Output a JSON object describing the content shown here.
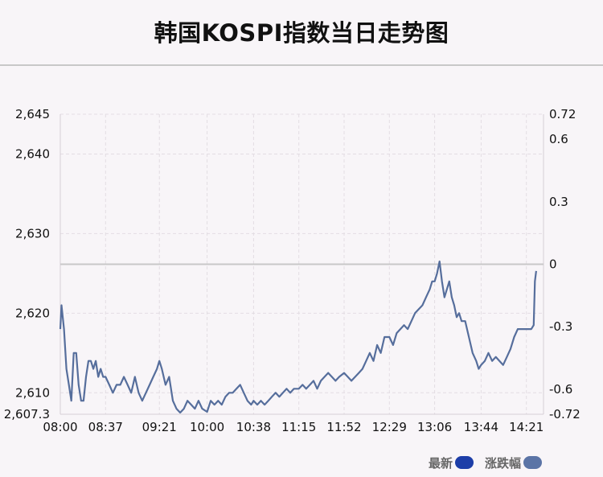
{
  "chart_data": {
    "type": "line",
    "title": "韩国KOSPI指数当日走势图",
    "legend": [
      {
        "name": "最新",
        "color": "#1d3ea8"
      },
      {
        "name": "涨跌幅",
        "color": "#5b74a6"
      }
    ],
    "legend_position": "bottom-right",
    "grid": true,
    "line_color": "#566e9c",
    "zero_line_color": "#c8c8c8",
    "y_left": {
      "min": 2607.3,
      "max": 2645,
      "ticks": [
        2645,
        2640,
        2630,
        2620,
        2610,
        2607.3
      ],
      "tick_labels": [
        "2,645",
        "2,640",
        "2,630",
        "2,620",
        "2,610",
        "2,607.3"
      ]
    },
    "y_right": {
      "min": -0.72,
      "max": 0.72,
      "ticks": [
        0.72,
        0.6,
        0.3,
        0,
        -0.3,
        -0.6,
        -0.72
      ],
      "tick_labels": [
        "0.72",
        "0.6",
        "0.3",
        "0",
        "-0.3",
        "-0.6",
        "-0.72"
      ]
    },
    "x_ticks": [
      "08:00",
      "08:37",
      "09:21",
      "10:00",
      "10:38",
      "11:15",
      "11:52",
      "12:29",
      "13:06",
      "13:44",
      "14:21"
    ],
    "x_range": [
      "08:00",
      "14:35"
    ],
    "series": [
      {
        "name": "最新",
        "points": [
          [
            "08:00",
            2618
          ],
          [
            "08:01",
            2621
          ],
          [
            "08:03",
            2618
          ],
          [
            "08:05",
            2613
          ],
          [
            "08:07",
            2611
          ],
          [
            "08:09",
            2609
          ],
          [
            "08:11",
            2615
          ],
          [
            "08:13",
            2615
          ],
          [
            "08:15",
            2611
          ],
          [
            "08:17",
            2609
          ],
          [
            "08:19",
            2609
          ],
          [
            "08:21",
            2612
          ],
          [
            "08:23",
            2614
          ],
          [
            "08:25",
            2614
          ],
          [
            "08:27",
            2613
          ],
          [
            "08:29",
            2614
          ],
          [
            "08:31",
            2612
          ],
          [
            "08:33",
            2613
          ],
          [
            "08:35",
            2612
          ],
          [
            "08:37",
            2612
          ],
          [
            "08:40",
            2611
          ],
          [
            "08:43",
            2610
          ],
          [
            "08:46",
            2611
          ],
          [
            "08:49",
            2611
          ],
          [
            "08:52",
            2612
          ],
          [
            "08:55",
            2611
          ],
          [
            "08:58",
            2610
          ],
          [
            "09:01",
            2612
          ],
          [
            "09:04",
            2610
          ],
          [
            "09:07",
            2609
          ],
          [
            "09:10",
            2610
          ],
          [
            "09:13",
            2611
          ],
          [
            "09:16",
            2612
          ],
          [
            "09:19",
            2613
          ],
          [
            "09:21",
            2614
          ],
          [
            "09:23",
            2613
          ],
          [
            "09:26",
            2611
          ],
          [
            "09:29",
            2612
          ],
          [
            "09:32",
            2609
          ],
          [
            "09:35",
            2608
          ],
          [
            "09:38",
            2607.5
          ],
          [
            "09:41",
            2608
          ],
          [
            "09:44",
            2609
          ],
          [
            "09:47",
            2608.5
          ],
          [
            "09:50",
            2608
          ],
          [
            "09:53",
            2609
          ],
          [
            "09:56",
            2608
          ],
          [
            "10:00",
            2607.6
          ],
          [
            "10:03",
            2609
          ],
          [
            "10:06",
            2608.5
          ],
          [
            "10:09",
            2609
          ],
          [
            "10:12",
            2608.5
          ],
          [
            "10:15",
            2609.5
          ],
          [
            "10:18",
            2610
          ],
          [
            "10:21",
            2610
          ],
          [
            "10:24",
            2610.5
          ],
          [
            "10:27",
            2611
          ],
          [
            "10:30",
            2610
          ],
          [
            "10:33",
            2609
          ],
          [
            "10:36",
            2608.5
          ],
          [
            "10:38",
            2609
          ],
          [
            "10:41",
            2608.5
          ],
          [
            "10:44",
            2609
          ],
          [
            "10:47",
            2608.5
          ],
          [
            "10:50",
            2609
          ],
          [
            "10:53",
            2609.5
          ],
          [
            "10:56",
            2610
          ],
          [
            "10:59",
            2609.5
          ],
          [
            "11:02",
            2610
          ],
          [
            "11:05",
            2610.5
          ],
          [
            "11:08",
            2610
          ],
          [
            "11:11",
            2610.5
          ],
          [
            "11:15",
            2610.5
          ],
          [
            "11:18",
            2611
          ],
          [
            "11:21",
            2610.5
          ],
          [
            "11:24",
            2611
          ],
          [
            "11:27",
            2611.5
          ],
          [
            "11:30",
            2610.5
          ],
          [
            "11:33",
            2611.5
          ],
          [
            "11:36",
            2612
          ],
          [
            "11:39",
            2612.5
          ],
          [
            "11:42",
            2612
          ],
          [
            "11:45",
            2611.5
          ],
          [
            "11:48",
            2612
          ],
          [
            "11:52",
            2612.5
          ],
          [
            "11:55",
            2612
          ],
          [
            "11:58",
            2611.5
          ],
          [
            "12:01",
            2612
          ],
          [
            "12:04",
            2612.5
          ],
          [
            "12:07",
            2613
          ],
          [
            "12:10",
            2614
          ],
          [
            "12:13",
            2615
          ],
          [
            "12:16",
            2614
          ],
          [
            "12:19",
            2616
          ],
          [
            "12:22",
            2615
          ],
          [
            "12:25",
            2617
          ],
          [
            "12:29",
            2617
          ],
          [
            "12:32",
            2616
          ],
          [
            "12:35",
            2617.5
          ],
          [
            "12:38",
            2618
          ],
          [
            "12:41",
            2618.5
          ],
          [
            "12:44",
            2618
          ],
          [
            "12:47",
            2619
          ],
          [
            "12:50",
            2620
          ],
          [
            "12:53",
            2620.5
          ],
          [
            "12:56",
            2621
          ],
          [
            "12:59",
            2622
          ],
          [
            "13:02",
            2623
          ],
          [
            "13:04",
            2624
          ],
          [
            "13:06",
            2624
          ],
          [
            "13:08",
            2625
          ],
          [
            "13:10",
            2626.5
          ],
          [
            "13:12",
            2624
          ],
          [
            "13:14",
            2622
          ],
          [
            "13:16",
            2623
          ],
          [
            "13:18",
            2624
          ],
          [
            "13:20",
            2622
          ],
          [
            "13:22",
            2621
          ],
          [
            "13:24",
            2619.5
          ],
          [
            "13:26",
            2620
          ],
          [
            "13:28",
            2619
          ],
          [
            "13:31",
            2619
          ],
          [
            "13:34",
            2617
          ],
          [
            "13:37",
            2615
          ],
          [
            "13:40",
            2614
          ],
          [
            "13:42",
            2613
          ],
          [
            "13:44",
            2613.5
          ],
          [
            "13:47",
            2614
          ],
          [
            "13:50",
            2615
          ],
          [
            "13:53",
            2614
          ],
          [
            "13:56",
            2614.5
          ],
          [
            "13:59",
            2614
          ],
          [
            "14:02",
            2613.5
          ],
          [
            "14:05",
            2614.5
          ],
          [
            "14:08",
            2615.5
          ],
          [
            "14:11",
            2617
          ],
          [
            "14:14",
            2618
          ],
          [
            "14:17",
            2618
          ],
          [
            "14:21",
            2618
          ],
          [
            "14:23",
            2618
          ],
          [
            "14:25",
            2618
          ],
          [
            "14:27",
            2618.5
          ],
          [
            "14:28",
            2624
          ],
          [
            "14:29",
            2625.3
          ]
        ]
      }
    ]
  }
}
